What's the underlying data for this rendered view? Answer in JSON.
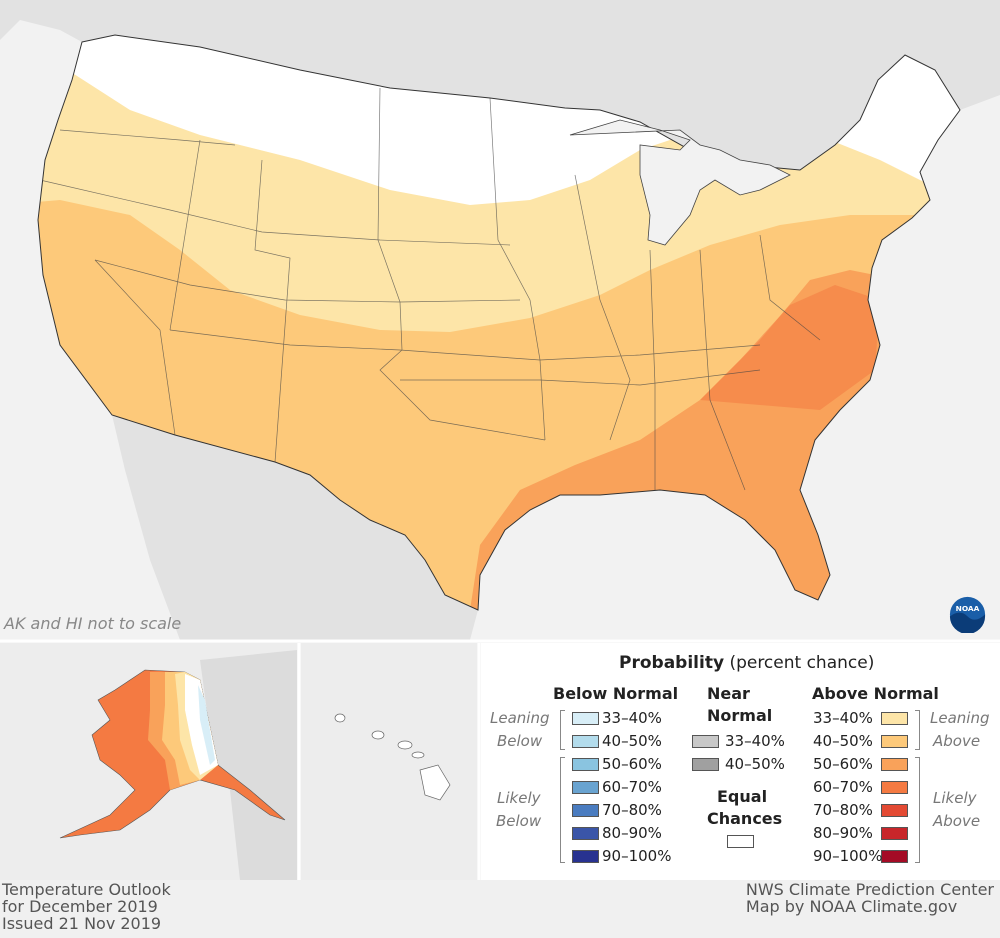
{
  "map": {
    "title_lines": [
      "Temperature Outlook",
      "for December 2019",
      "Issued 21 Nov 2019"
    ],
    "credit_lines": [
      "NWS Climate Prediction Center",
      "Map by NOAA Climate.gov"
    ],
    "scale_note": "AK and HI not to scale",
    "logo_text": "NOAA",
    "colors": {
      "ocean": "#f2f2f2",
      "land_other": "#e3e3e3",
      "equal_chances": "#ffffff",
      "above_33_40": "#fde5a8",
      "above_40_50": "#fdc97a",
      "above_50_60": "#f9a25a",
      "above_60_70": "#f47a42",
      "below_33_40": "#d8eef7"
    }
  },
  "legend": {
    "title_bold": "Probability",
    "title_rest": "(percent chance)",
    "below": {
      "heading": "Below Normal",
      "leaning": [
        "Leaning",
        "Below"
      ],
      "likely": [
        "Likely",
        "Below"
      ],
      "items": [
        {
          "label": "33–40%",
          "color": "#d8eef7"
        },
        {
          "label": "40–50%",
          "color": "#b3dcec"
        },
        {
          "label": "50–60%",
          "color": "#8ac4e0"
        },
        {
          "label": "60–70%",
          "color": "#69a3d0"
        },
        {
          "label": "70–80%",
          "color": "#4a7cc0"
        },
        {
          "label": "80–90%",
          "color": "#3a55a8"
        },
        {
          "label": "90–100%",
          "color": "#283290"
        }
      ]
    },
    "near": {
      "heading": [
        "Near",
        "Normal"
      ],
      "items": [
        {
          "label": "33–40%",
          "color": "#c8c8c8"
        },
        {
          "label": "40–50%",
          "color": "#a0a0a0"
        }
      ],
      "equal_heading": [
        "Equal",
        "Chances"
      ],
      "equal_color": "#ffffff"
    },
    "above": {
      "heading": "Above Normal",
      "leaning": [
        "Leaning",
        "Above"
      ],
      "likely": [
        "Likely",
        "Above"
      ],
      "items": [
        {
          "label": "33–40%",
          "color": "#fde5a8"
        },
        {
          "label": "40–50%",
          "color": "#fdc97a"
        },
        {
          "label": "50–60%",
          "color": "#f9a25a"
        },
        {
          "label": "60–70%",
          "color": "#f47a42"
        },
        {
          "label": "70–80%",
          "color": "#e34a33"
        },
        {
          "label": "80–90%",
          "color": "#c8262a"
        },
        {
          "label": "90–100%",
          "color": "#a40b25"
        }
      ]
    }
  }
}
